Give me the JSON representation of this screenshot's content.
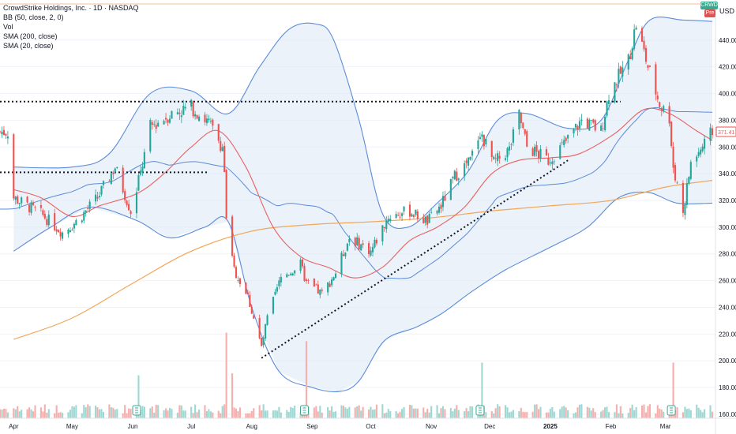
{
  "legend": {
    "title": "CrowdStrike Holdings, Inc. · 1D · NASDAQ",
    "indicators": [
      "BB (50, close, 2, 0)",
      "Vol",
      "SMA (200, close)",
      "SMA (20, close)"
    ]
  },
  "scale": {
    "currency": "USD"
  },
  "badges": {
    "ticker": "CRWD",
    "session": "Pre",
    "last_price": "371.41"
  },
  "colors": {
    "up": "#26a69a",
    "down": "#ef5350",
    "bb_line": "#5b8bd9",
    "bb_fill": "#dbe8f6",
    "sma200": "#f2a65a",
    "sma20": "#ea6060",
    "trend": "#131722",
    "vol_up": "#9fd8d2",
    "vol_down": "#f5b0ae",
    "badge": "#3aa78f",
    "pre": "#e05353"
  },
  "chart_data": {
    "type": "candlestick",
    "title": "CrowdStrike Holdings, Inc. · 1D · NASDAQ",
    "x_labels": [
      "Apr",
      "May",
      "Jun",
      "Jul",
      "Aug",
      "Sep",
      "Oct",
      "Nov",
      "Dec",
      "2025",
      "Feb",
      "Mar"
    ],
    "y_ticks": [
      160,
      180,
      200,
      220,
      240,
      260,
      280,
      300,
      320,
      340,
      360,
      380,
      400,
      420,
      440
    ],
    "y_range": [
      157,
      470
    ],
    "last_price": 371.41,
    "close_anchors": [
      {
        "date": "2024-04-01",
        "close": 322
      },
      {
        "date": "2024-04-15",
        "close": 310
      },
      {
        "date": "2024-04-26",
        "close": 296
      },
      {
        "date": "2024-05-03",
        "close": 304
      },
      {
        "date": "2024-05-14",
        "close": 322
      },
      {
        "date": "2024-05-23",
        "close": 345
      },
      {
        "date": "2024-05-31",
        "close": 312
      },
      {
        "date": "2024-06-05",
        "close": 340
      },
      {
        "date": "2024-06-10",
        "close": 375
      },
      {
        "date": "2024-06-21",
        "close": 385
      },
      {
        "date": "2024-07-01",
        "close": 390
      },
      {
        "date": "2024-07-10",
        "close": 378
      },
      {
        "date": "2024-07-17",
        "close": 360
      },
      {
        "date": "2024-07-18",
        "close": 342
      },
      {
        "date": "2024-07-19",
        "close": 304
      },
      {
        "date": "2024-07-23",
        "close": 268
      },
      {
        "date": "2024-07-30",
        "close": 248
      },
      {
        "date": "2024-08-06",
        "close": 210
      },
      {
        "date": "2024-08-09",
        "close": 232
      },
      {
        "date": "2024-08-16",
        "close": 262
      },
      {
        "date": "2024-08-26",
        "close": 272
      },
      {
        "date": "2024-08-29",
        "close": 258
      },
      {
        "date": "2024-09-06",
        "close": 250
      },
      {
        "date": "2024-09-13",
        "close": 266
      },
      {
        "date": "2024-09-20",
        "close": 292
      },
      {
        "date": "2024-10-01",
        "close": 282
      },
      {
        "date": "2024-10-10",
        "close": 308
      },
      {
        "date": "2024-10-21",
        "close": 312
      },
      {
        "date": "2024-10-30",
        "close": 304
      },
      {
        "date": "2024-11-06",
        "close": 316
      },
      {
        "date": "2024-11-13",
        "close": 338
      },
      {
        "date": "2024-11-21",
        "close": 350
      },
      {
        "date": "2024-11-26",
        "close": 372
      },
      {
        "date": "2024-12-03",
        "close": 348
      },
      {
        "date": "2024-12-11",
        "close": 358
      },
      {
        "date": "2024-12-16",
        "close": 384
      },
      {
        "date": "2024-12-20",
        "close": 360
      },
      {
        "date": "2024-12-31",
        "close": 350
      },
      {
        "date": "2025-01-08",
        "close": 362
      },
      {
        "date": "2025-01-17",
        "close": 380
      },
      {
        "date": "2025-01-27",
        "close": 372
      },
      {
        "date": "2025-01-31",
        "close": 400
      },
      {
        "date": "2025-02-10",
        "close": 425
      },
      {
        "date": "2025-02-14",
        "close": 452
      },
      {
        "date": "2025-02-20",
        "close": 420
      },
      {
        "date": "2025-02-26",
        "close": 392
      },
      {
        "date": "2025-03-03",
        "close": 382
      },
      {
        "date": "2025-03-05",
        "close": 345
      },
      {
        "date": "2025-03-10",
        "close": 312
      },
      {
        "date": "2025-03-14",
        "close": 348
      },
      {
        "date": "2025-03-21",
        "close": 362
      },
      {
        "date": "2025-03-25",
        "close": 371.41
      }
    ],
    "sma200": [
      {
        "date": "2024-04-01",
        "value": 216
      },
      {
        "date": "2024-05-01",
        "value": 232
      },
      {
        "date": "2024-06-01",
        "value": 258
      },
      {
        "date": "2024-07-01",
        "value": 282
      },
      {
        "date": "2024-08-01",
        "value": 297
      },
      {
        "date": "2024-09-01",
        "value": 302
      },
      {
        "date": "2024-10-01",
        "value": 304
      },
      {
        "date": "2024-11-01",
        "value": 307
      },
      {
        "date": "2024-12-01",
        "value": 312
      },
      {
        "date": "2025-01-01",
        "value": 316
      },
      {
        "date": "2025-02-01",
        "value": 320
      },
      {
        "date": "2025-03-01",
        "value": 330
      },
      {
        "date": "2025-03-25",
        "value": 335
      }
    ],
    "sma20": [
      {
        "date": "2024-04-01",
        "value": 328
      },
      {
        "date": "2024-04-15",
        "value": 322
      },
      {
        "date": "2024-05-01",
        "value": 308
      },
      {
        "date": "2024-05-15",
        "value": 316
      },
      {
        "date": "2024-06-03",
        "value": 325
      },
      {
        "date": "2024-06-17",
        "value": 340
      },
      {
        "date": "2024-07-01",
        "value": 360
      },
      {
        "date": "2024-07-15",
        "value": 372
      },
      {
        "date": "2024-07-29",
        "value": 345
      },
      {
        "date": "2024-08-12",
        "value": 300
      },
      {
        "date": "2024-08-26",
        "value": 278
      },
      {
        "date": "2024-09-09",
        "value": 270
      },
      {
        "date": "2024-09-23",
        "value": 262
      },
      {
        "date": "2024-10-07",
        "value": 270
      },
      {
        "date": "2024-10-21",
        "value": 290
      },
      {
        "date": "2024-11-04",
        "value": 300
      },
      {
        "date": "2024-11-18",
        "value": 315
      },
      {
        "date": "2024-12-02",
        "value": 340
      },
      {
        "date": "2024-12-16",
        "value": 350
      },
      {
        "date": "2025-01-02",
        "value": 352
      },
      {
        "date": "2025-01-16",
        "value": 355
      },
      {
        "date": "2025-02-03",
        "value": 370
      },
      {
        "date": "2025-02-18",
        "value": 388
      },
      {
        "date": "2025-03-03",
        "value": 385
      },
      {
        "date": "2025-03-17",
        "value": 372
      },
      {
        "date": "2025-03-25",
        "value": 365
      }
    ],
    "bb_upper": [
      {
        "date": "2024-04-01",
        "value": 345
      },
      {
        "date": "2024-05-01",
        "value": 345
      },
      {
        "date": "2024-05-20",
        "value": 355
      },
      {
        "date": "2024-06-10",
        "value": 400
      },
      {
        "date": "2024-07-01",
        "value": 402
      },
      {
        "date": "2024-07-20",
        "value": 385
      },
      {
        "date": "2024-08-05",
        "value": 420
      },
      {
        "date": "2024-08-20",
        "value": 448
      },
      {
        "date": "2024-09-03",
        "value": 452
      },
      {
        "date": "2024-09-12",
        "value": 440
      },
      {
        "date": "2024-09-25",
        "value": 380
      },
      {
        "date": "2024-10-07",
        "value": 310
      },
      {
        "date": "2024-10-20",
        "value": 300
      },
      {
        "date": "2024-11-04",
        "value": 318
      },
      {
        "date": "2024-11-20",
        "value": 342
      },
      {
        "date": "2024-12-05",
        "value": 380
      },
      {
        "date": "2024-12-20",
        "value": 385
      },
      {
        "date": "2025-01-10",
        "value": 374
      },
      {
        "date": "2025-01-27",
        "value": 380
      },
      {
        "date": "2025-02-10",
        "value": 425
      },
      {
        "date": "2025-02-21",
        "value": 455
      },
      {
        "date": "2025-03-10",
        "value": 455
      },
      {
        "date": "2025-03-25",
        "value": 454
      }
    ],
    "bb_lower": [
      {
        "date": "2024-04-01",
        "value": 282
      },
      {
        "date": "2024-04-20",
        "value": 300
      },
      {
        "date": "2024-05-10",
        "value": 315
      },
      {
        "date": "2024-06-03",
        "value": 305
      },
      {
        "date": "2024-06-20",
        "value": 292
      },
      {
        "date": "2024-07-08",
        "value": 300
      },
      {
        "date": "2024-07-20",
        "value": 304
      },
      {
        "date": "2024-08-01",
        "value": 240
      },
      {
        "date": "2024-08-15",
        "value": 192
      },
      {
        "date": "2024-09-01",
        "value": 180
      },
      {
        "date": "2024-09-15",
        "value": 177
      },
      {
        "date": "2024-09-25",
        "value": 185
      },
      {
        "date": "2024-10-08",
        "value": 215
      },
      {
        "date": "2024-10-24",
        "value": 225
      },
      {
        "date": "2024-11-06",
        "value": 235
      },
      {
        "date": "2024-11-22",
        "value": 252
      },
      {
        "date": "2024-12-09",
        "value": 268
      },
      {
        "date": "2025-01-01",
        "value": 285
      },
      {
        "date": "2025-01-20",
        "value": 300
      },
      {
        "date": "2025-02-05",
        "value": 322
      },
      {
        "date": "2025-02-20",
        "value": 326
      },
      {
        "date": "2025-03-07",
        "value": 318
      },
      {
        "date": "2025-03-25",
        "value": 318
      }
    ],
    "horizontal_lines": [
      {
        "from": "2024-03-25",
        "to": "2025-02-06",
        "price": 394
      },
      {
        "from": "2024-03-25",
        "to": "2024-07-10",
        "price": 341
      }
    ],
    "trendline": {
      "from": {
        "date": "2024-08-06",
        "price": 202
      },
      "to": {
        "date": "2025-01-10",
        "price": 350
      }
    },
    "earnings_markers": [
      "2024-06-03",
      "2024-08-28",
      "2024-11-26",
      "2025-03-04"
    ]
  }
}
